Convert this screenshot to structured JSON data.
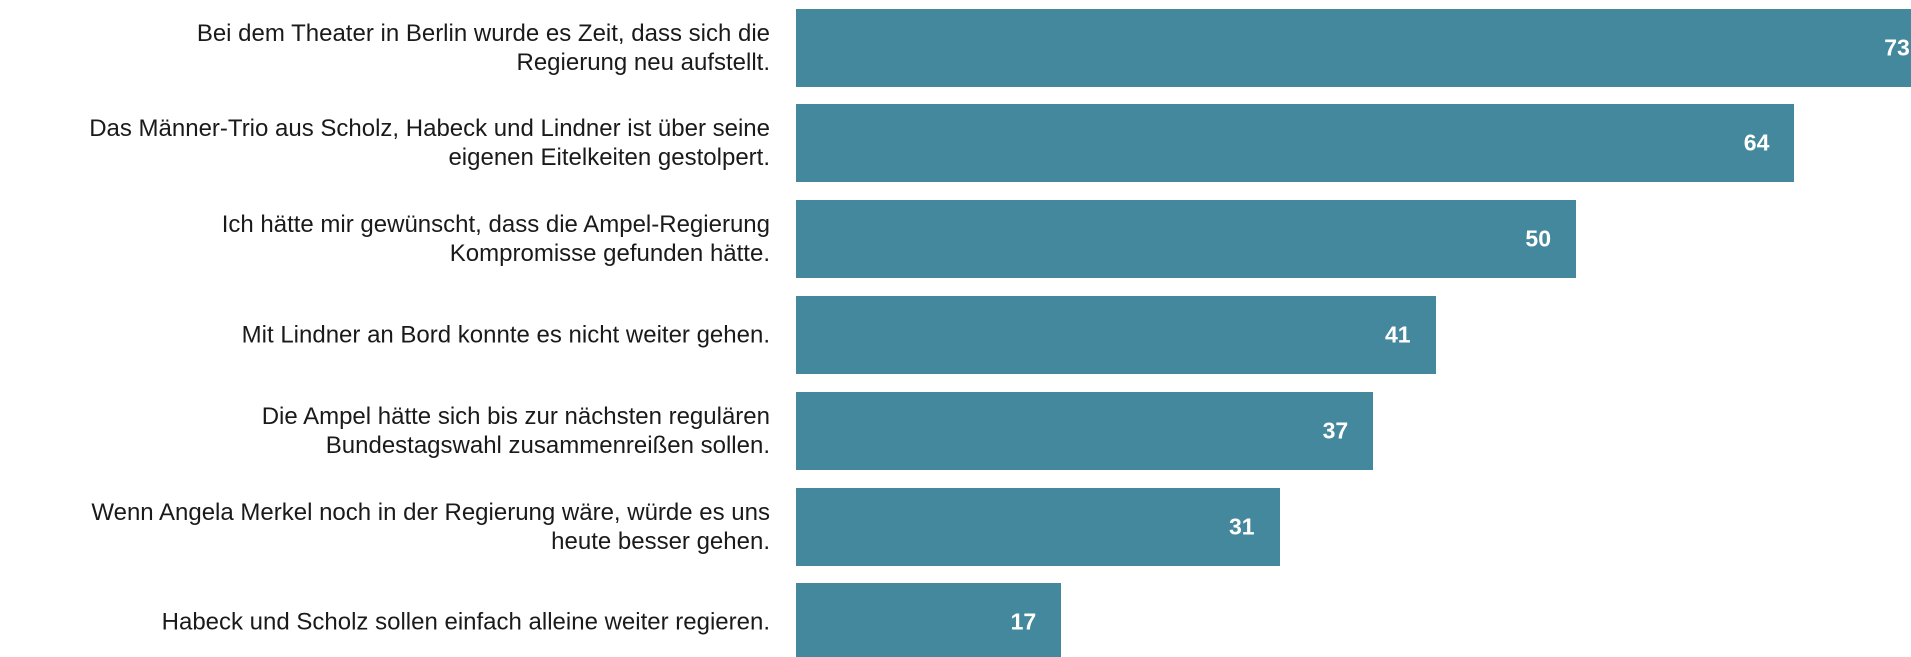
{
  "chart_data": {
    "type": "bar",
    "orientation": "horizontal",
    "color": "#44889e",
    "categories": [
      "Bei dem Theater in Berlin wurde es Zeit, dass sich die\nRegierung neu aufstellt.",
      "Das Männer-Trio aus Scholz, Habeck und Lindner ist über seine\neigenen Eitelkeiten gestolpert.",
      "Ich hätte mir gewünscht, dass die Ampel-Regierung\nKompromisse gefunden hätte.",
      "Mit Lindner an Bord konnte es nicht weiter gehen.",
      "Die Ampel hätte sich bis zur nächsten regulären\nBundestagswahl zusammenreißen sollen.",
      "Wenn Angela Merkel noch in der Regierung wäre, würde es uns\nheute besser gehen.",
      "Habeck und Scholz sollen einfach alleine weiter regieren."
    ],
    "values": [
      73,
      64,
      50,
      41,
      37,
      31,
      17
    ]
  }
}
